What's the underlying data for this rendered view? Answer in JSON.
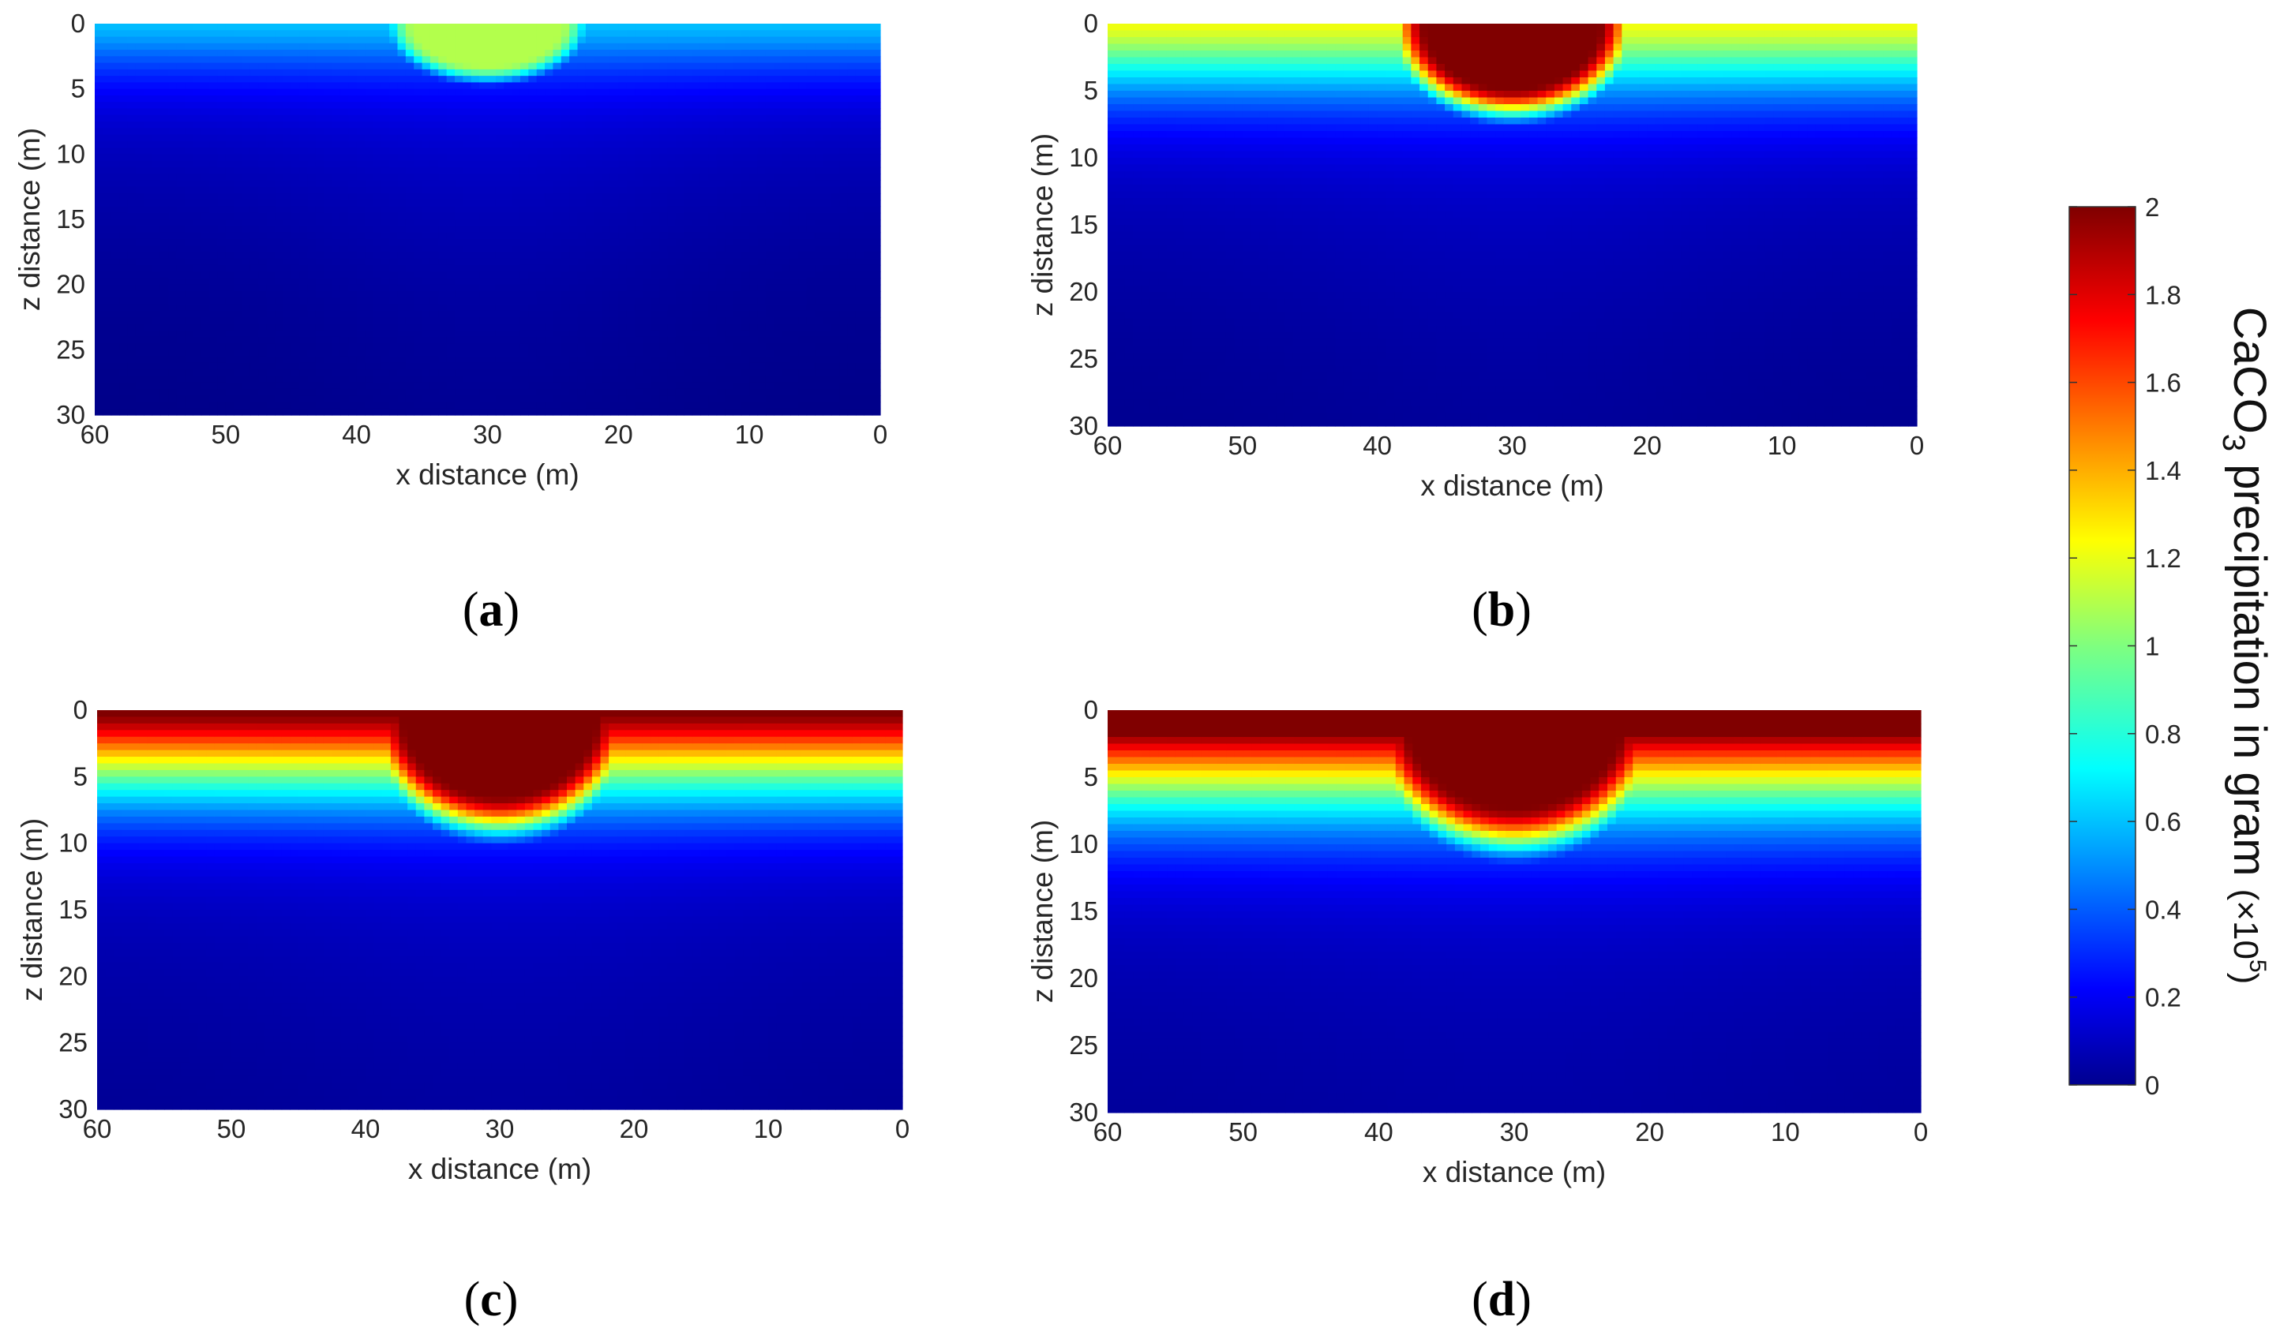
{
  "chart_data": [
    {
      "type": "heatmap",
      "panel": "a",
      "caption_letter": "a",
      "xlabel": "x distance (m)",
      "ylabel": "z distance (m)",
      "xlim": [
        60,
        0
      ],
      "ylim": [
        30,
        0
      ],
      "x_ticks": [
        60,
        50,
        40,
        30,
        20,
        10,
        0
      ],
      "y_ticks": [
        0,
        5,
        10,
        15,
        20,
        25,
        30
      ],
      "plume": {
        "center_x": 30,
        "half_width": 5,
        "depth": 3,
        "peak": 1.1
      },
      "surface_value": 0.35,
      "falloff_depth": 11
    },
    {
      "type": "heatmap",
      "panel": "b",
      "caption_letter": "b",
      "xlabel": "x distance (m)",
      "ylabel": "z distance (m)",
      "xlim": [
        60,
        0
      ],
      "ylim": [
        30,
        0
      ],
      "x_ticks": [
        60,
        50,
        40,
        30,
        20,
        10,
        0
      ],
      "y_ticks": [
        0,
        5,
        10,
        15,
        20,
        25,
        30
      ],
      "plume": {
        "center_x": 30,
        "half_width": 6,
        "depth": 5,
        "peak": 2.0
      },
      "surface_value": 0.95,
      "falloff_depth": 14
    },
    {
      "type": "heatmap",
      "panel": "c",
      "caption_letter": "c",
      "xlabel": "x distance (m)",
      "ylabel": "z distance (m)",
      "xlim": [
        60,
        0
      ],
      "ylim": [
        30,
        0
      ],
      "x_ticks": [
        60,
        50,
        40,
        30,
        20,
        10,
        0
      ],
      "y_ticks": [
        0,
        5,
        10,
        15,
        20,
        25,
        30
      ],
      "plume": {
        "center_x": 30,
        "half_width": 7,
        "depth": 7,
        "peak": 2.0
      },
      "surface_value": 1.75,
      "falloff_depth": 16
    },
    {
      "type": "heatmap",
      "panel": "d",
      "caption_letter": "d",
      "xlabel": "x distance (m)",
      "ylabel": "z distance (m)",
      "xlim": [
        60,
        0
      ],
      "ylim": [
        30,
        0
      ],
      "x_ticks": [
        60,
        50,
        40,
        30,
        20,
        10,
        0
      ],
      "y_ticks": [
        0,
        5,
        10,
        15,
        20,
        25,
        30
      ],
      "plume": {
        "center_x": 30,
        "half_width": 8,
        "depth": 8,
        "peak": 2.0
      },
      "surface_value": 2.0,
      "falloff_depth": 18
    }
  ],
  "colorbar": {
    "label_main": "CaCO",
    "label_sub": "3",
    "label_rest": " precipitation in gram ",
    "label_scale_prefix": "(×10",
    "label_scale_exp": "5",
    "label_scale_suffix": ")",
    "ticks": [
      "0",
      "0.2",
      "0.4",
      "0.6",
      "0.8",
      "1",
      "1.2",
      "1.4",
      "1.6",
      "1.8",
      "2"
    ],
    "range": [
      0,
      2
    ],
    "colormap": "jet"
  }
}
